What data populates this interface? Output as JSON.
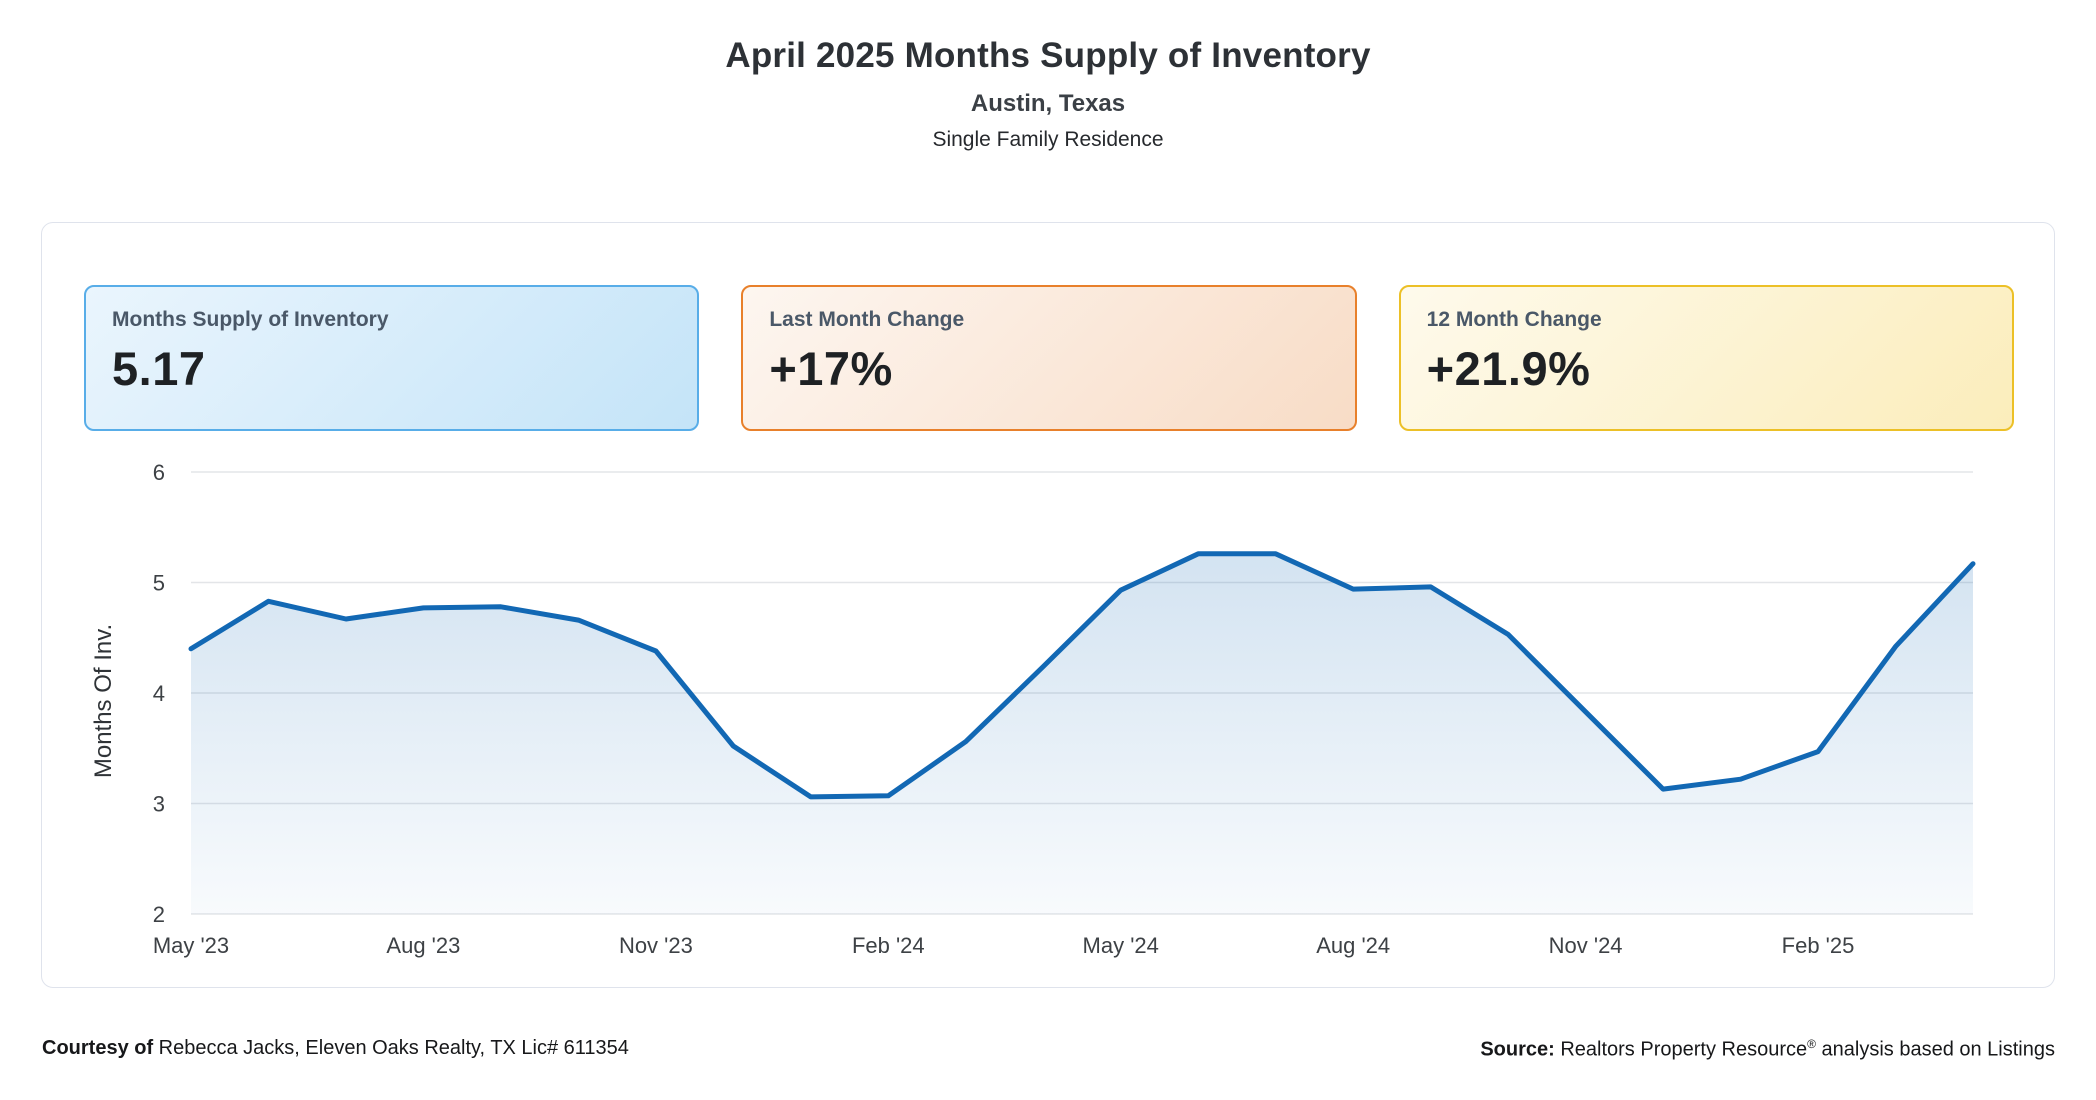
{
  "header": {
    "title": "April 2025 Months Supply of Inventory",
    "subtitle": "Austin, Texas",
    "property_type": "Single Family Residence"
  },
  "stat_cards": [
    {
      "label": "Months Supply of Inventory",
      "value": "5.17",
      "accent": "#58ade8",
      "bg_from": "#eaf5fd",
      "bg_to": "#c4e4f8"
    },
    {
      "label": "Last Month Change",
      "value": "+17%",
      "accent": "#e8802b",
      "bg_from": "#fdf6f0",
      "bg_to": "#f8dcc6"
    },
    {
      "label": "12 Month Change",
      "value": "+21.9%",
      "accent": "#ecc027",
      "bg_from": "#fefaec",
      "bg_to": "#fbedbb"
    }
  ],
  "chart_data": {
    "type": "area",
    "title": "April 2025 Months Supply of Inventory — Austin, Texas",
    "xlabel": "",
    "ylabel": "Months Of Inv.",
    "x": [
      "May '23",
      "Jun '23",
      "Jul '23",
      "Aug '23",
      "Sep '23",
      "Oct '23",
      "Nov '23",
      "Dec '23",
      "Jan '24",
      "Feb '24",
      "Mar '24",
      "Apr '24",
      "May '24",
      "Jun '24",
      "Jul '24",
      "Aug '24",
      "Sep '24",
      "Oct '24",
      "Nov '24",
      "Dec '24",
      "Jan '25",
      "Feb '25",
      "Mar '25",
      "Apr '25"
    ],
    "values": [
      4.4,
      4.83,
      4.67,
      4.77,
      4.78,
      4.66,
      4.38,
      3.52,
      3.06,
      3.07,
      3.56,
      4.24,
      4.93,
      5.26,
      5.26,
      4.94,
      4.96,
      4.53,
      3.83,
      3.13,
      3.22,
      3.47,
      4.42,
      5.17
    ],
    "ylim": [
      2,
      6
    ],
    "yticks": [
      6,
      5,
      4,
      3,
      2
    ],
    "xtick_labels": [
      "May '23",
      "Aug '23",
      "Nov '23",
      "Feb '24",
      "May '24",
      "Aug '24",
      "Nov '24",
      "Feb '25"
    ],
    "xtick_every": 3,
    "grid": true,
    "legend": "none",
    "line_color": "#1268b4",
    "grid_color": "#e3e5e8",
    "tick_color": "#3d4145"
  },
  "footer": {
    "courtesy_label": "Courtesy of",
    "courtesy_text": " Rebecca Jacks, Eleven Oaks Realty, TX Lic# 611354",
    "source_label": "Source:",
    "source_text_pre": " Realtors Property Resource",
    "source_reg_mark": "®",
    "source_text_post": " analysis based on Listings"
  }
}
